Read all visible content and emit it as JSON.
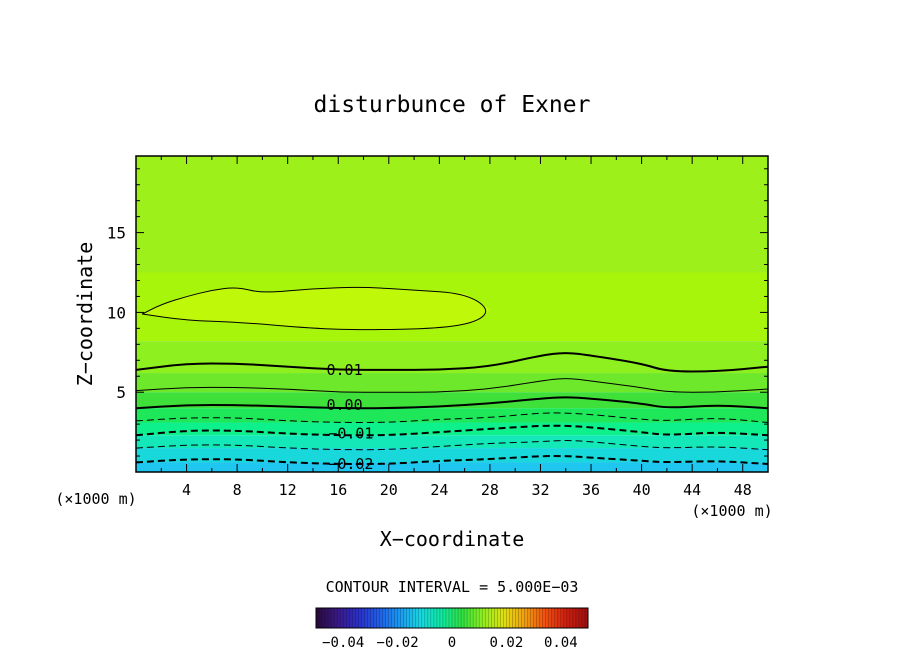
{
  "chart_data": {
    "type": "heatmap",
    "title": "disturbunce of Exner",
    "xlabel": "X−coordinate",
    "ylabel": "Z−coordinate",
    "x_unit_left": "(×1000 m)",
    "x_unit_right": "(×1000 m)",
    "xlim": [
      0,
      50
    ],
    "ylim": [
      0,
      19.8
    ],
    "x_ticks": [
      4,
      8,
      12,
      16,
      20,
      24,
      28,
      32,
      36,
      40,
      44,
      48
    ],
    "y_ticks": [
      5,
      10,
      15
    ],
    "contour_interval_text": "CONTOUR INTERVAL = 5.000E−03",
    "contour_labels": [
      {
        "text": "0.01",
        "x": 16.5,
        "z": 6.4
      },
      {
        "text": "0.00",
        "x": 16.5,
        "z": 4.2
      },
      {
        "text": "−0.01",
        "x": 17,
        "z": 2.4
      },
      {
        "text": "−0.02",
        "x": 17,
        "z": 0.5
      }
    ],
    "contours": [
      {
        "level": 0.01,
        "style": "solid-bold",
        "points": [
          [
            0,
            6.4
          ],
          [
            4,
            6.8
          ],
          [
            8,
            6.8
          ],
          [
            12,
            6.6
          ],
          [
            16,
            6.4
          ],
          [
            20,
            6.4
          ],
          [
            24,
            6.4
          ],
          [
            28,
            6.6
          ],
          [
            32,
            7.3
          ],
          [
            34,
            7.5
          ],
          [
            36,
            7.3
          ],
          [
            40,
            6.8
          ],
          [
            42,
            6.3
          ],
          [
            46,
            6.3
          ],
          [
            50,
            6.6
          ]
        ]
      },
      {
        "level": 0.005,
        "style": "solid-thin",
        "points": [
          [
            0,
            5.1
          ],
          [
            4,
            5.3
          ],
          [
            8,
            5.3
          ],
          [
            12,
            5.2
          ],
          [
            16,
            5.0
          ],
          [
            20,
            5.0
          ],
          [
            24,
            5.0
          ],
          [
            28,
            5.2
          ],
          [
            32,
            5.7
          ],
          [
            34,
            5.9
          ],
          [
            36,
            5.7
          ],
          [
            40,
            5.3
          ],
          [
            42,
            5.0
          ],
          [
            46,
            5.0
          ],
          [
            50,
            5.2
          ]
        ]
      },
      {
        "level": 0.0,
        "style": "solid-bold",
        "points": [
          [
            0,
            4.0
          ],
          [
            4,
            4.2
          ],
          [
            8,
            4.2
          ],
          [
            12,
            4.1
          ],
          [
            16,
            4.0
          ],
          [
            20,
            4.0
          ],
          [
            24,
            4.1
          ],
          [
            28,
            4.3
          ],
          [
            32,
            4.6
          ],
          [
            34,
            4.7
          ],
          [
            36,
            4.6
          ],
          [
            40,
            4.3
          ],
          [
            42,
            4.0
          ],
          [
            46,
            4.2
          ],
          [
            50,
            4.0
          ]
        ]
      },
      {
        "level": -0.005,
        "style": "dashed-thin",
        "points": [
          [
            0,
            3.2
          ],
          [
            4,
            3.4
          ],
          [
            8,
            3.4
          ],
          [
            12,
            3.2
          ],
          [
            16,
            3.1
          ],
          [
            20,
            3.1
          ],
          [
            24,
            3.3
          ],
          [
            28,
            3.4
          ],
          [
            32,
            3.7
          ],
          [
            34,
            3.7
          ],
          [
            36,
            3.6
          ],
          [
            40,
            3.3
          ],
          [
            42,
            3.2
          ],
          [
            46,
            3.4
          ],
          [
            50,
            3.1
          ]
        ]
      },
      {
        "level": -0.01,
        "style": "dashed-bold",
        "points": [
          [
            0,
            2.3
          ],
          [
            4,
            2.6
          ],
          [
            8,
            2.6
          ],
          [
            12,
            2.4
          ],
          [
            16,
            2.3
          ],
          [
            20,
            2.3
          ],
          [
            24,
            2.5
          ],
          [
            28,
            2.7
          ],
          [
            32,
            2.9
          ],
          [
            34,
            2.9
          ],
          [
            36,
            2.8
          ],
          [
            40,
            2.5
          ],
          [
            42,
            2.3
          ],
          [
            46,
            2.5
          ],
          [
            50,
            2.3
          ]
        ]
      },
      {
        "level": -0.015,
        "style": "dashed-thin",
        "points": [
          [
            0,
            1.5
          ],
          [
            4,
            1.7
          ],
          [
            8,
            1.7
          ],
          [
            12,
            1.5
          ],
          [
            16,
            1.4
          ],
          [
            20,
            1.4
          ],
          [
            24,
            1.6
          ],
          [
            28,
            1.8
          ],
          [
            32,
            1.9
          ],
          [
            34,
            2.0
          ],
          [
            36,
            1.9
          ],
          [
            40,
            1.6
          ],
          [
            42,
            1.5
          ],
          [
            46,
            1.6
          ],
          [
            50,
            1.4
          ]
        ]
      },
      {
        "level": -0.02,
        "style": "dashed-bold",
        "points": [
          [
            0,
            0.6
          ],
          [
            4,
            0.8
          ],
          [
            8,
            0.8
          ],
          [
            12,
            0.6
          ],
          [
            16,
            0.5
          ],
          [
            20,
            0.5
          ],
          [
            24,
            0.7
          ],
          [
            28,
            0.8
          ],
          [
            32,
            1.0
          ],
          [
            34,
            1.0
          ],
          [
            36,
            0.9
          ],
          [
            40,
            0.7
          ],
          [
            42,
            0.6
          ],
          [
            46,
            0.7
          ],
          [
            50,
            0.5
          ]
        ]
      },
      {
        "level": 0.015,
        "style": "solid-thin",
        "closed": true,
        "points": [
          [
            0.5,
            9.9
          ],
          [
            2,
            10.5
          ],
          [
            4,
            11.0
          ],
          [
            6,
            11.4
          ],
          [
            8,
            11.6
          ],
          [
            10,
            11.2
          ],
          [
            14,
            11.5
          ],
          [
            18,
            11.6
          ],
          [
            22,
            11.4
          ],
          [
            26,
            11.2
          ],
          [
            28,
            10.2
          ],
          [
            27,
            9.4
          ],
          [
            24,
            9.0
          ],
          [
            18,
            8.9
          ],
          [
            14,
            9.0
          ],
          [
            8,
            9.4
          ],
          [
            4,
            9.5
          ],
          [
            0.5,
            9.9
          ]
        ]
      }
    ],
    "fill_bands": [
      {
        "top": 19.8,
        "color": "#9ef01a"
      },
      {
        "top": 12.5,
        "color": "#a8f50c"
      },
      {
        "top": 8.2,
        "color": "#8ef01f"
      },
      {
        "top": 6.2,
        "color": "#6ee82a"
      },
      {
        "top": 5.0,
        "color": "#3fe03a"
      },
      {
        "top": 4.0,
        "color": "#1ee85a"
      },
      {
        "top": 3.1,
        "color": "#0ef08c"
      },
      {
        "top": 2.3,
        "color": "#14e8b8"
      },
      {
        "top": 1.5,
        "color": "#18d8dc"
      },
      {
        "top": 0.6,
        "color": "#1ec6f0"
      }
    ],
    "colorbar": {
      "tick_labels": [
        "−0.04",
        "−0.02",
        "0",
        "0.02",
        "0.04"
      ],
      "tick_values": [
        -0.04,
        -0.02,
        0,
        0.02,
        0.04
      ],
      "range": [
        -0.05,
        0.05
      ],
      "colors": [
        "#2a0a40",
        "#3a1a8a",
        "#2a30c8",
        "#2060e8",
        "#1a9af0",
        "#18d8e0",
        "#10e8a0",
        "#30e040",
        "#90f020",
        "#e0e010",
        "#f0a010",
        "#f05010",
        "#d02010",
        "#a01010"
      ]
    }
  }
}
